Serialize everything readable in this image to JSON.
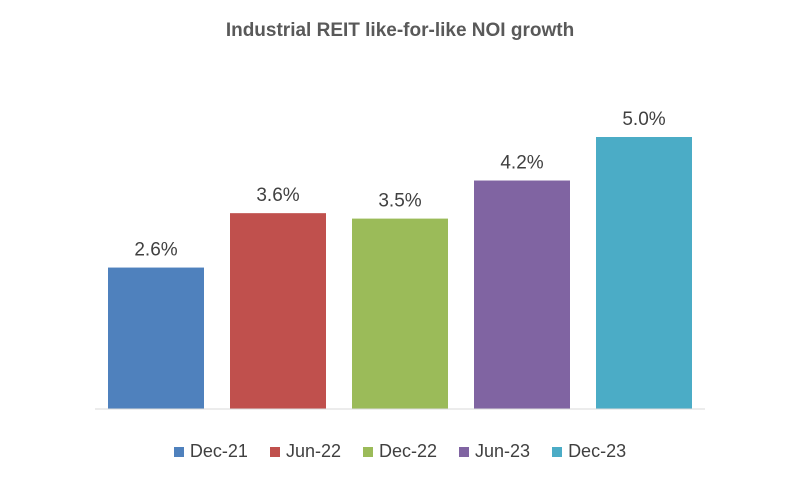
{
  "chart_data": {
    "type": "bar",
    "title": "Industrial REIT like-for-like NOI growth",
    "xlabel": "",
    "ylabel": "",
    "categories": [
      "Dec-21",
      "Jun-22",
      "Dec-22",
      "Jun-23",
      "Dec-23"
    ],
    "values": [
      2.6,
      3.6,
      3.5,
      4.2,
      5.0
    ],
    "data_labels": [
      "2.6%",
      "3.6%",
      "3.5%",
      "4.2%",
      "5.0%"
    ],
    "colors": [
      "#4F81BD",
      "#C0504D",
      "#9BBB59",
      "#8064A2",
      "#4BACC6"
    ],
    "ylim": [
      0,
      5.0
    ],
    "grid": false,
    "legend_position": "bottom"
  }
}
